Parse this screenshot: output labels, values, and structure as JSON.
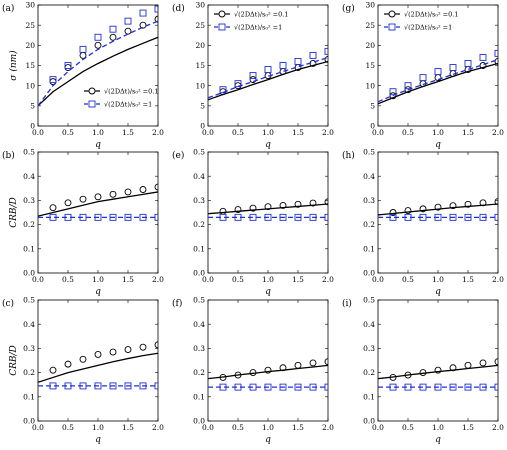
{
  "chart_data": [
    {
      "type": "scatter",
      "panel_label": "(a)",
      "xlabel": "q",
      "ylabel": "σ (nm)",
      "xlim": [
        0,
        2
      ],
      "ylim": [
        0,
        30
      ],
      "xticks": [
        "0.0",
        "0.5",
        "1.0",
        "1.5",
        "2.0"
      ],
      "yticks": [
        "0",
        "5",
        "10",
        "15",
        "20",
        "25",
        "30"
      ],
      "legend": {
        "placement": "lower-right",
        "entries": [
          "√(2DΔt)/s₀² =0.1",
          "√(2DΔt)/s₀² =1"
        ]
      },
      "series": [
        {
          "name": "√(2DΔt)/s₀² =0.1",
          "color": "#000000",
          "marker": "circle",
          "line": "solid",
          "points_x": [
            0.25,
            0.5,
            0.75,
            1.0,
            1.25,
            1.5,
            1.75,
            2.0
          ],
          "points_y": [
            11.0,
            14.5,
            17.5,
            20.0,
            22.0,
            23.5,
            25.0,
            26.5
          ],
          "curve_x": [
            0,
            0.25,
            0.5,
            0.75,
            1.0,
            1.25,
            1.5,
            1.75,
            2.0
          ],
          "curve_y": [
            5.0,
            8.5,
            11.0,
            13.5,
            15.5,
            17.3,
            19.0,
            20.5,
            22.0
          ]
        },
        {
          "name": "√(2DΔt)/s₀² =1",
          "color": "#1f2fd6",
          "marker": "square",
          "line": "dashed",
          "points_x": [
            0.25,
            0.5,
            0.75,
            1.0,
            1.25,
            1.5,
            1.75,
            2.0
          ],
          "points_y": [
            11.5,
            15.0,
            19.0,
            22.0,
            24.0,
            26.0,
            28.0,
            29.0
          ],
          "curve_x": [
            0,
            0.25,
            0.5,
            0.75,
            1.0,
            1.25,
            1.5,
            1.75,
            2.0
          ],
          "curve_y": [
            5.0,
            10.0,
            13.5,
            16.5,
            19.0,
            21.0,
            22.8,
            24.5,
            26.0
          ]
        }
      ]
    },
    {
      "type": "scatter",
      "panel_label": "(d)",
      "xlabel": "q",
      "ylabel": "",
      "xlim": [
        0,
        2
      ],
      "ylim": [
        0,
        30
      ],
      "xticks": [
        "0.0",
        "0.5",
        "1.0",
        "1.5",
        "2.0"
      ],
      "yticks": [
        "0",
        "5",
        "10",
        "15",
        "20",
        "25",
        "30"
      ],
      "legend": {
        "placement": "top-left",
        "entries": [
          "√(2DΔt)/s₀² =0.1",
          "√(2DΔt)/s₀² =1"
        ]
      },
      "series": [
        {
          "name": "√(2DΔt)/s₀² =0.1",
          "color": "#000000",
          "marker": "circle",
          "line": "solid",
          "points_x": [
            0.25,
            0.5,
            0.75,
            1.0,
            1.25,
            1.5,
            1.75,
            2.0
          ],
          "points_y": [
            8.5,
            10.0,
            11.5,
            12.5,
            13.5,
            14.5,
            15.5,
            16.5
          ],
          "curve_x": [
            0,
            0.25,
            0.5,
            0.75,
            1.0,
            1.25,
            1.5,
            1.75,
            2.0
          ],
          "curve_y": [
            6.5,
            7.8,
            9.0,
            10.3,
            11.5,
            12.8,
            14.0,
            15.0,
            16.0
          ]
        },
        {
          "name": "√(2DΔt)/s₀² =1",
          "color": "#1f2fd6",
          "marker": "square",
          "line": "dashed",
          "points_x": [
            0.25,
            0.5,
            0.75,
            1.0,
            1.25,
            1.5,
            1.75,
            2.0
          ],
          "points_y": [
            9.0,
            10.5,
            12.5,
            14.0,
            15.0,
            16.0,
            17.5,
            18.5
          ],
          "curve_x": [
            0,
            0.25,
            0.5,
            0.75,
            1.0,
            1.25,
            1.5,
            1.75,
            2.0
          ],
          "curve_y": [
            7.0,
            8.3,
            9.8,
            11.0,
            12.3,
            13.5,
            14.7,
            15.8,
            17.0
          ]
        }
      ]
    },
    {
      "type": "scatter",
      "panel_label": "(g)",
      "xlabel": "q",
      "ylabel": "",
      "xlim": [
        0,
        2
      ],
      "ylim": [
        0,
        30
      ],
      "xticks": [
        "0.0",
        "0.5",
        "1.0",
        "1.5",
        "2.0"
      ],
      "yticks": [
        "0",
        "5",
        "10",
        "15",
        "20",
        "25",
        "30"
      ],
      "legend": {
        "placement": "top-left",
        "entries": [
          "√(2DΔt)/s₀² =0.1",
          "√(2DΔt)/s₀² =1"
        ]
      },
      "series": [
        {
          "name": "√(2DΔt)/s₀² =0.1",
          "color": "#000000",
          "marker": "circle",
          "line": "solid",
          "points_x": [
            0.25,
            0.5,
            0.75,
            1.0,
            1.25,
            1.5,
            1.75,
            2.0
          ],
          "points_y": [
            7.5,
            9.0,
            10.5,
            12.0,
            13.0,
            14.0,
            15.0,
            16.0
          ],
          "curve_x": [
            0,
            0.25,
            0.5,
            0.75,
            1.0,
            1.25,
            1.5,
            1.75,
            2.0
          ],
          "curve_y": [
            5.5,
            7.0,
            8.5,
            9.8,
            11.0,
            12.3,
            13.5,
            14.5,
            15.5
          ]
        },
        {
          "name": "√(2DΔt)/s₀² =1",
          "color": "#1f2fd6",
          "marker": "square",
          "line": "dashed",
          "points_x": [
            0.25,
            0.5,
            0.75,
            1.0,
            1.25,
            1.5,
            1.75,
            2.0
          ],
          "points_y": [
            8.5,
            10.0,
            12.0,
            13.5,
            14.5,
            15.5,
            17.0,
            18.0
          ],
          "curve_x": [
            0,
            0.25,
            0.5,
            0.75,
            1.0,
            1.25,
            1.5,
            1.75,
            2.0
          ],
          "curve_y": [
            6.0,
            7.6,
            9.0,
            10.3,
            11.5,
            12.8,
            14.0,
            15.2,
            16.5
          ]
        }
      ]
    },
    {
      "type": "scatter",
      "panel_label": "(b)",
      "xlabel": "q",
      "ylabel": "CRB/D",
      "xlim": [
        0,
        2
      ],
      "ylim": [
        0,
        0.5
      ],
      "xticks": [
        "0.0",
        "0.5",
        "1.0",
        "1.5",
        "2.0"
      ],
      "yticks": [
        "0.0",
        "0.1",
        "0.2",
        "0.3",
        "0.4",
        "0.5"
      ],
      "series": [
        {
          "name": "√(2DΔt)/s₀² =0.1",
          "color": "#000000",
          "marker": "circle",
          "line": "solid",
          "points_x": [
            0.25,
            0.5,
            0.75,
            1.0,
            1.25,
            1.5,
            1.75,
            2.0
          ],
          "points_y": [
            0.27,
            0.29,
            0.305,
            0.315,
            0.325,
            0.335,
            0.345,
            0.355
          ],
          "curve_x": [
            0,
            0.25,
            0.5,
            0.75,
            1.0,
            1.25,
            1.5,
            1.75,
            2.0
          ],
          "curve_y": [
            0.235,
            0.25,
            0.265,
            0.28,
            0.295,
            0.305,
            0.315,
            0.325,
            0.335
          ]
        },
        {
          "name": "√(2DΔt)/s₀² =1",
          "color": "#1f2fd6",
          "marker": "square",
          "line": "dashed",
          "points_x": [
            0.25,
            0.5,
            0.75,
            1.0,
            1.25,
            1.5,
            1.75,
            2.0
          ],
          "points_y": [
            0.23,
            0.23,
            0.23,
            0.23,
            0.23,
            0.23,
            0.23,
            0.23
          ],
          "curve_x": [
            0,
            2.0
          ],
          "curve_y": [
            0.23,
            0.23
          ]
        }
      ]
    },
    {
      "type": "scatter",
      "panel_label": "(e)",
      "xlabel": "q",
      "ylabel": "",
      "xlim": [
        0,
        2
      ],
      "ylim": [
        0,
        0.5
      ],
      "xticks": [
        "0.0",
        "0.5",
        "1.0",
        "1.5",
        "2.0"
      ],
      "yticks": [
        "0.0",
        "0.1",
        "0.2",
        "0.3",
        "0.4",
        "0.5"
      ],
      "series": [
        {
          "name": "√(2DΔt)/s₀² =0.1",
          "color": "#000000",
          "marker": "circle",
          "line": "solid",
          "points_x": [
            0.25,
            0.5,
            0.75,
            1.0,
            1.25,
            1.5,
            1.75,
            2.0
          ],
          "points_y": [
            0.255,
            0.262,
            0.268,
            0.274,
            0.279,
            0.284,
            0.289,
            0.294
          ],
          "curve_x": [
            0,
            0.25,
            0.5,
            0.75,
            1.0,
            1.25,
            1.5,
            1.75,
            2.0
          ],
          "curve_y": [
            0.245,
            0.25,
            0.255,
            0.26,
            0.265,
            0.27,
            0.275,
            0.28,
            0.285
          ]
        },
        {
          "name": "√(2DΔt)/s₀² =1",
          "color": "#1f2fd6",
          "marker": "square",
          "line": "dashed",
          "points_x": [
            0.25,
            0.5,
            0.75,
            1.0,
            1.25,
            1.5,
            1.75,
            2.0
          ],
          "points_y": [
            0.23,
            0.23,
            0.23,
            0.23,
            0.23,
            0.23,
            0.23,
            0.23
          ],
          "curve_x": [
            0,
            2.0
          ],
          "curve_y": [
            0.23,
            0.23
          ]
        }
      ]
    },
    {
      "type": "scatter",
      "panel_label": "(h)",
      "xlabel": "q",
      "ylabel": "",
      "xlim": [
        0,
        2
      ],
      "ylim": [
        0,
        0.5
      ],
      "xticks": [
        "0.0",
        "0.5",
        "1.0",
        "1.5",
        "2.0"
      ],
      "yticks": [
        "0.0",
        "0.1",
        "0.2",
        "0.3",
        "0.4",
        "0.5"
      ],
      "series": [
        {
          "name": "√(2DΔt)/s₀² =0.1",
          "color": "#000000",
          "marker": "circle",
          "line": "solid",
          "points_x": [
            0.25,
            0.5,
            0.75,
            1.0,
            1.25,
            1.5,
            1.75,
            2.0
          ],
          "points_y": [
            0.25,
            0.258,
            0.265,
            0.272,
            0.278,
            0.284,
            0.29,
            0.295
          ],
          "curve_x": [
            0,
            0.25,
            0.5,
            0.75,
            1.0,
            1.25,
            1.5,
            1.75,
            2.0
          ],
          "curve_y": [
            0.24,
            0.246,
            0.252,
            0.258,
            0.264,
            0.27,
            0.275,
            0.28,
            0.285
          ]
        },
        {
          "name": "√(2DΔt)/s₀² =1",
          "color": "#1f2fd6",
          "marker": "square",
          "line": "dashed",
          "points_x": [
            0.25,
            0.5,
            0.75,
            1.0,
            1.25,
            1.5,
            1.75,
            2.0
          ],
          "points_y": [
            0.23,
            0.23,
            0.23,
            0.23,
            0.23,
            0.23,
            0.23,
            0.23
          ],
          "curve_x": [
            0,
            2.0
          ],
          "curve_y": [
            0.23,
            0.23
          ]
        }
      ]
    },
    {
      "type": "scatter",
      "panel_label": "(c)",
      "xlabel": "q",
      "ylabel": "CRB/D",
      "xlim": [
        0,
        2
      ],
      "ylim": [
        0,
        0.5
      ],
      "xticks": [
        "0.0",
        "0.5",
        "1.0",
        "1.5",
        "2.0"
      ],
      "yticks": [
        "0.0",
        "0.1",
        "0.2",
        "0.3",
        "0.4",
        "0.5"
      ],
      "series": [
        {
          "name": "√(2DΔt)/s₀² =0.1",
          "color": "#000000",
          "marker": "circle",
          "line": "solid",
          "points_x": [
            0.25,
            0.5,
            0.75,
            1.0,
            1.25,
            1.5,
            1.75,
            2.0
          ],
          "points_y": [
            0.21,
            0.235,
            0.255,
            0.275,
            0.285,
            0.295,
            0.305,
            0.315
          ],
          "curve_x": [
            0,
            0.25,
            0.5,
            0.75,
            1.0,
            1.25,
            1.5,
            1.75,
            2.0
          ],
          "curve_y": [
            0.16,
            0.18,
            0.2,
            0.215,
            0.23,
            0.245,
            0.258,
            0.27,
            0.28
          ]
        },
        {
          "name": "√(2DΔt)/s₀² =1",
          "color": "#1f2fd6",
          "marker": "square",
          "line": "dashed",
          "points_x": [
            0.25,
            0.5,
            0.75,
            1.0,
            1.25,
            1.5,
            1.75,
            2.0
          ],
          "points_y": [
            0.145,
            0.145,
            0.145,
            0.145,
            0.145,
            0.145,
            0.145,
            0.145
          ],
          "curve_x": [
            0,
            2.0
          ],
          "curve_y": [
            0.145,
            0.145
          ]
        }
      ]
    },
    {
      "type": "scatter",
      "panel_label": "(f)",
      "xlabel": "q",
      "ylabel": "",
      "xlim": [
        0,
        2
      ],
      "ylim": [
        0,
        0.5
      ],
      "xticks": [
        "0.0",
        "0.5",
        "1.0",
        "1.5",
        "2.0"
      ],
      "yticks": [
        "0.0",
        "0.1",
        "0.2",
        "0.3",
        "0.4",
        "0.5"
      ],
      "series": [
        {
          "name": "√(2DΔt)/s₀² =0.1",
          "color": "#000000",
          "marker": "circle",
          "line": "solid",
          "points_x": [
            0.25,
            0.5,
            0.75,
            1.0,
            1.25,
            1.5,
            1.75,
            2.0
          ],
          "points_y": [
            0.18,
            0.19,
            0.2,
            0.21,
            0.22,
            0.23,
            0.24,
            0.245
          ],
          "curve_x": [
            0,
            0.25,
            0.5,
            0.75,
            1.0,
            1.25,
            1.5,
            1.75,
            2.0
          ],
          "curve_y": [
            0.175,
            0.182,
            0.19,
            0.197,
            0.204,
            0.21,
            0.217,
            0.223,
            0.23
          ]
        },
        {
          "name": "√(2DΔt)/s₀² =1",
          "color": "#1f2fd6",
          "marker": "square",
          "line": "dashed",
          "points_x": [
            0.25,
            0.5,
            0.75,
            1.0,
            1.25,
            1.5,
            1.75,
            2.0
          ],
          "points_y": [
            0.14,
            0.14,
            0.14,
            0.14,
            0.14,
            0.14,
            0.14,
            0.14
          ],
          "curve_x": [
            0,
            2.0
          ],
          "curve_y": [
            0.14,
            0.14
          ]
        }
      ]
    },
    {
      "type": "scatter",
      "panel_label": "(i)",
      "xlabel": "q",
      "ylabel": "",
      "xlim": [
        0,
        2
      ],
      "ylim": [
        0,
        0.5
      ],
      "xticks": [
        "0.0",
        "0.5",
        "1.0",
        "1.5",
        "2.0"
      ],
      "yticks": [
        "0.0",
        "0.1",
        "0.2",
        "0.3",
        "0.4",
        "0.5"
      ],
      "series": [
        {
          "name": "√(2DΔt)/s₀² =0.1",
          "color": "#000000",
          "marker": "circle",
          "line": "solid",
          "points_x": [
            0.25,
            0.5,
            0.75,
            1.0,
            1.25,
            1.5,
            1.75,
            2.0
          ],
          "points_y": [
            0.18,
            0.19,
            0.2,
            0.21,
            0.22,
            0.23,
            0.24,
            0.245
          ],
          "curve_x": [
            0,
            0.25,
            0.5,
            0.75,
            1.0,
            1.25,
            1.5,
            1.75,
            2.0
          ],
          "curve_y": [
            0.175,
            0.182,
            0.19,
            0.197,
            0.204,
            0.21,
            0.217,
            0.223,
            0.23
          ]
        },
        {
          "name": "√(2DΔt)/s₀² =1",
          "color": "#1f2fd6",
          "marker": "square",
          "line": "dashed",
          "points_x": [
            0.25,
            0.5,
            0.75,
            1.0,
            1.25,
            1.5,
            1.75,
            2.0
          ],
          "points_y": [
            0.14,
            0.14,
            0.14,
            0.14,
            0.14,
            0.14,
            0.14,
            0.14
          ],
          "curve_x": [
            0,
            2.0
          ],
          "curve_y": [
            0.14,
            0.14
          ]
        }
      ]
    }
  ]
}
